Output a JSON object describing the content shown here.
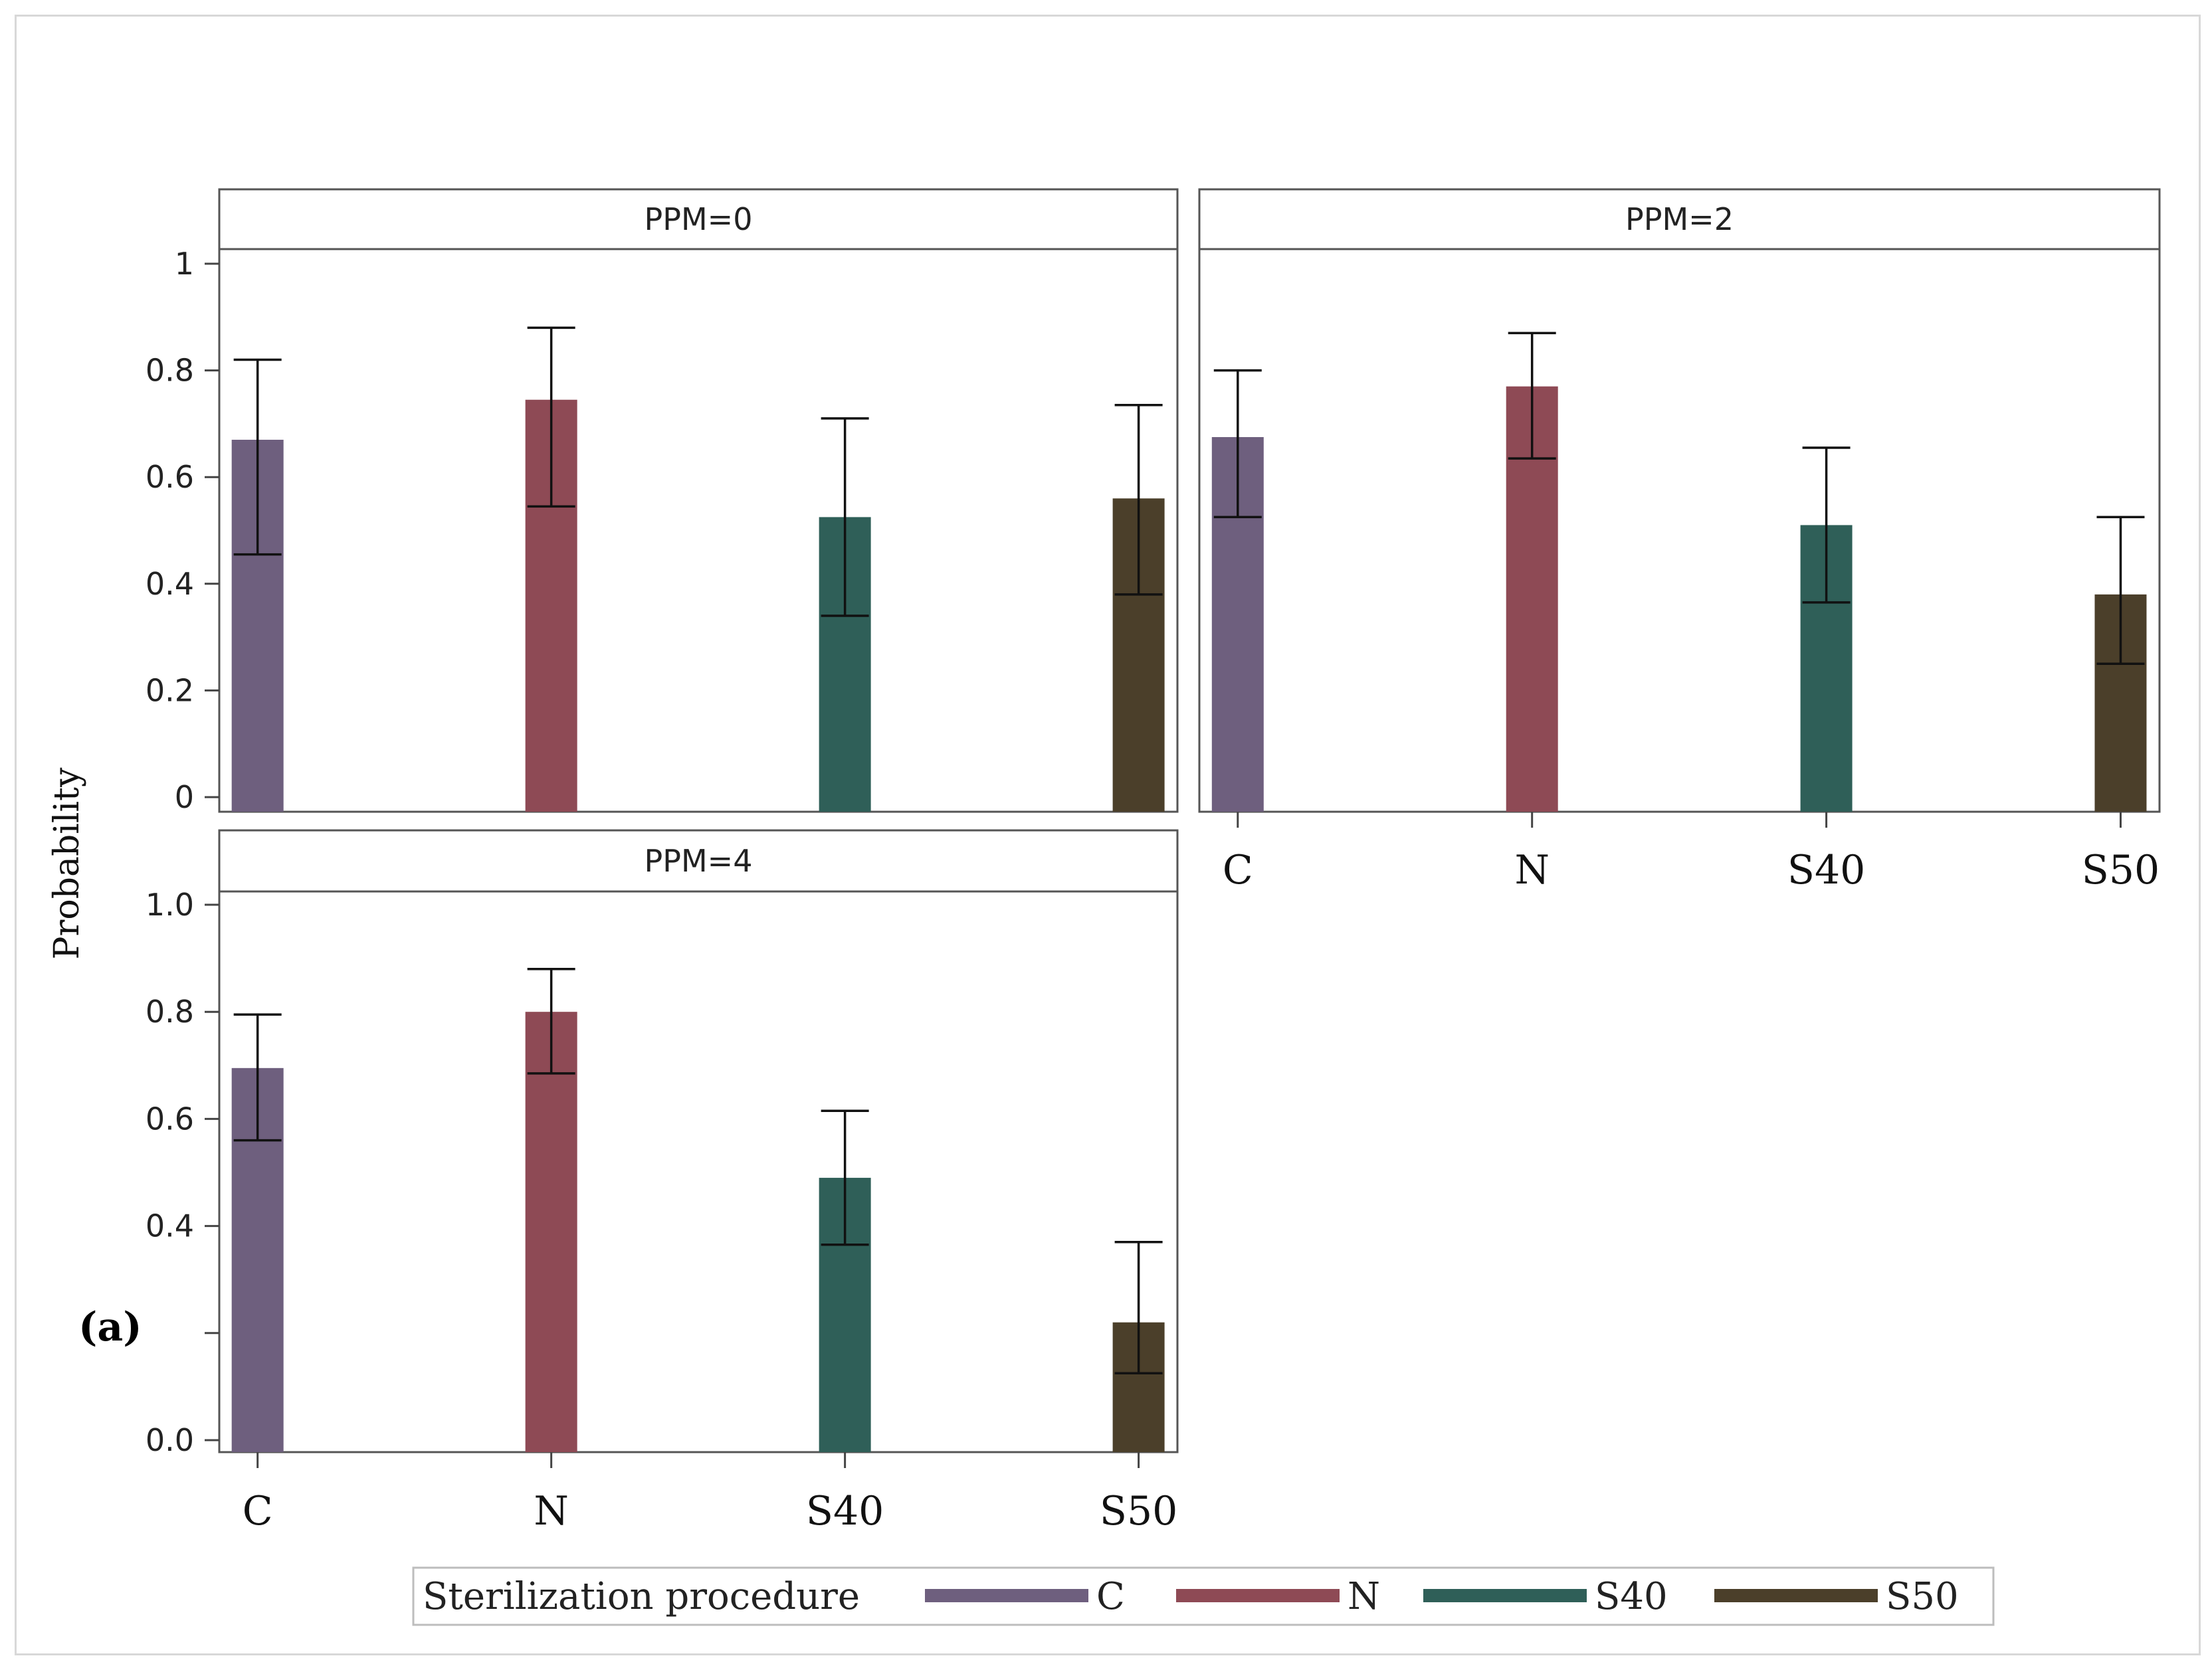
{
  "chart_data": {
    "type": "bar",
    "ylabel": "Probability",
    "panel_label": "(a)",
    "categories": [
      "C",
      "N",
      "S40",
      "S50"
    ],
    "ylim": [
      0,
      1
    ],
    "yticks": [
      0.0,
      0.2,
      0.4,
      0.6,
      0.8,
      1.0
    ],
    "yticks_lower_panel": [
      "0.0",
      "",
      "0.4",
      "0.6",
      "0.8",
      "1.0"
    ],
    "colors": {
      "C": "#6e5f7e",
      "N": "#8e4a55",
      "S40": "#2f5f58",
      "S50": "#4b3f2a"
    },
    "panels": [
      {
        "title": "PPM=0",
        "values": [
          0.67,
          0.745,
          0.525,
          0.56
        ],
        "err_low": [
          0.455,
          0.545,
          0.34,
          0.38
        ],
        "err_high": [
          0.82,
          0.88,
          0.71,
          0.735
        ]
      },
      {
        "title": "PPM=2",
        "values": [
          0.675,
          0.77,
          0.51,
          0.38
        ],
        "err_low": [
          0.525,
          0.635,
          0.365,
          0.25
        ],
        "err_high": [
          0.8,
          0.87,
          0.655,
          0.525
        ]
      },
      {
        "title": "PPM=4",
        "values": [
          0.695,
          0.8,
          0.49,
          0.22
        ],
        "err_low": [
          0.56,
          0.685,
          0.365,
          0.125
        ],
        "err_high": [
          0.795,
          0.88,
          0.615,
          0.37
        ]
      }
    ],
    "legend": {
      "title": "Sterilization procedure",
      "entries": [
        "C",
        "N",
        "S40",
        "S50"
      ],
      "position": "bottom"
    }
  }
}
